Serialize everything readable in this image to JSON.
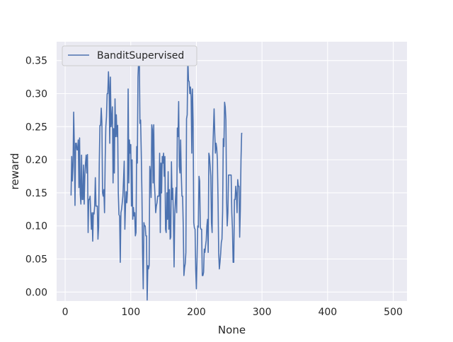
{
  "chart_data": {
    "type": "line",
    "xlabel": "None",
    "ylabel": "reward",
    "xlim": [
      -13,
      521
    ],
    "ylim": [
      -0.0135,
      0.3785
    ],
    "x_ticks": [
      0,
      100,
      200,
      300,
      400,
      500
    ],
    "x_tick_labels": [
      "0",
      "100",
      "200",
      "300",
      "400",
      "500"
    ],
    "y_ticks": [
      0.0,
      0.05,
      0.1,
      0.15,
      0.2,
      0.25,
      0.3,
      0.35
    ],
    "y_tick_labels": [
      "0.00",
      "0.05",
      "0.10",
      "0.15",
      "0.20",
      "0.25",
      "0.30",
      "0.35"
    ],
    "grid": true,
    "legend_position": "top-left",
    "colors": {
      "series": "#4c72b0",
      "plot_bg": "#eaeaf2",
      "grid": "#ffffff"
    },
    "series": [
      {
        "name": "BanditSupervised",
        "x_start": 9,
        "values": [
          0.146,
          0.205,
          0.168,
          0.19,
          0.272,
          0.22,
          0.131,
          0.225,
          0.225,
          0.215,
          0.215,
          0.23,
          0.158,
          0.233,
          0.148,
          0.133,
          0.207,
          0.14,
          0.14,
          0.192,
          0.133,
          0.175,
          0.195,
          0.207,
          0.18,
          0.208,
          0.09,
          0.14,
          0.14,
          0.145,
          0.12,
          0.095,
          0.12,
          0.077,
          0.12,
          0.118,
          0.13,
          0.173,
          0.13,
          0.13,
          0.13,
          0.08,
          0.098,
          0.195,
          0.252,
          0.252,
          0.278,
          0.255,
          0.15,
          0.145,
          0.155,
          0.12,
          0.2,
          0.25,
          0.265,
          0.3,
          0.3,
          0.333,
          0.308,
          0.225,
          0.325,
          0.25,
          0.26,
          0.28,
          0.165,
          0.247,
          0.18,
          0.292,
          0.235,
          0.268,
          0.235,
          0.252,
          0.15,
          0.117,
          0.115,
          0.045,
          0.12,
          0.125,
          0.135,
          0.145,
          0.17,
          0.198,
          0.095,
          0.13,
          0.152,
          0.135,
          0.152,
          0.307,
          0.165,
          0.23,
          0.21,
          0.223,
          0.13,
          0.2,
          0.11,
          0.128,
          0.115,
          0.12,
          0.085,
          0.09,
          0.22,
          0.195,
          0.325,
          0.35,
          0.363,
          0.255,
          0.26,
          0.21,
          0.15,
          0.06,
          0.005,
          0.105,
          0.1,
          0.1,
          0.085,
          0.085,
          -0.012,
          0.04,
          0.035,
          0.04,
          0.19,
          0.18,
          0.143,
          0.253,
          0.245,
          0.165,
          0.253,
          0.165,
          0.145,
          0.12,
          0.13,
          0.135,
          0.145,
          0.145,
          0.145,
          0.21,
          0.09,
          0.195,
          0.15,
          0.205,
          0.195,
          0.21,
          0.175,
          0.205,
          0.095,
          0.09,
          0.15,
          0.11,
          0.182,
          0.095,
          0.155,
          0.08,
          0.083,
          0.197,
          0.14,
          0.157,
          0.113,
          0.038,
          0.115,
          0.138,
          0.158,
          0.12,
          0.248,
          0.235,
          0.288,
          0.19,
          0.18,
          0.23,
          0.178,
          0.145,
          0.145,
          0.1,
          0.025,
          0.037,
          0.043,
          0.06,
          0.262,
          0.268,
          0.353,
          0.32,
          0.318,
          0.3,
          0.31,
          0.295,
          0.21,
          0.307,
          0.258,
          0.105,
          0.097,
          0.095,
          0.033,
          0.005,
          0.05,
          0.1,
          0.098,
          0.175,
          0.168,
          0.098,
          0.095,
          0.095,
          0.025,
          0.025,
          0.03,
          0.065,
          0.06,
          0.07,
          0.078,
          0.1,
          0.11,
          0.06,
          0.21,
          0.205,
          0.19,
          0.175,
          0.105,
          0.09,
          0.21,
          0.245,
          0.277,
          0.24,
          0.21,
          0.225,
          0.218,
          0.2,
          0.14,
          0.06,
          0.035,
          0.045,
          0.058,
          0.075,
          0.08,
          0.122,
          0.232,
          0.22,
          0.287,
          0.28,
          0.26,
          0.14,
          0.1,
          0.12,
          0.177,
          0.177,
          0.177,
          0.177,
          0.177,
          0.12,
          0.095,
          0.045,
          0.045,
          0.14,
          0.14,
          0.16,
          0.148,
          0.12,
          0.17,
          0.16,
          0.16,
          0.083,
          0.125,
          0.2,
          0.24,
          0.24
        ]
      }
    ]
  }
}
